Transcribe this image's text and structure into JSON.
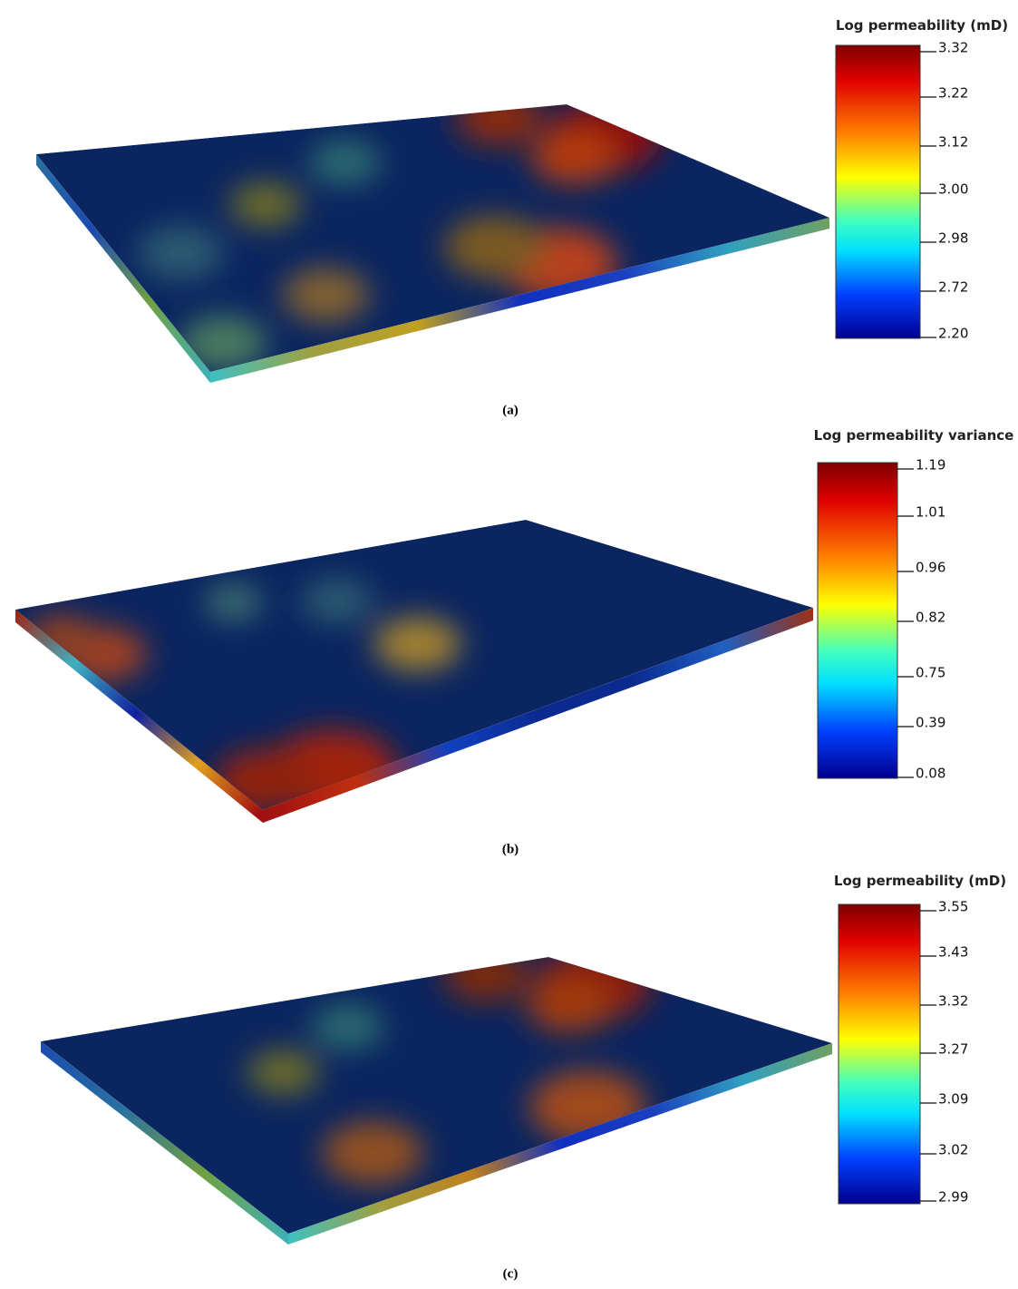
{
  "panels": [
    {
      "legend_title": "Log permeability (mD)",
      "colorbar_ticks": [
        "3.32",
        "3.22",
        "3.12",
        "3.00",
        "2.98",
        "2.72",
        "2.20"
      ],
      "caption": "(a)"
    },
    {
      "legend_title": "Log permeability variance",
      "colorbar_ticks": [
        "1.19",
        "1.01",
        "0.96",
        "0.82",
        "0.75",
        "0.39",
        "0.08"
      ],
      "caption": "(b)"
    },
    {
      "legend_title": "Log permeability (mD)",
      "colorbar_ticks": [
        "3.55",
        "3.43",
        "3.32",
        "3.27",
        "3.09",
        "3.02",
        "2.99"
      ],
      "caption": "(c)"
    }
  ]
}
